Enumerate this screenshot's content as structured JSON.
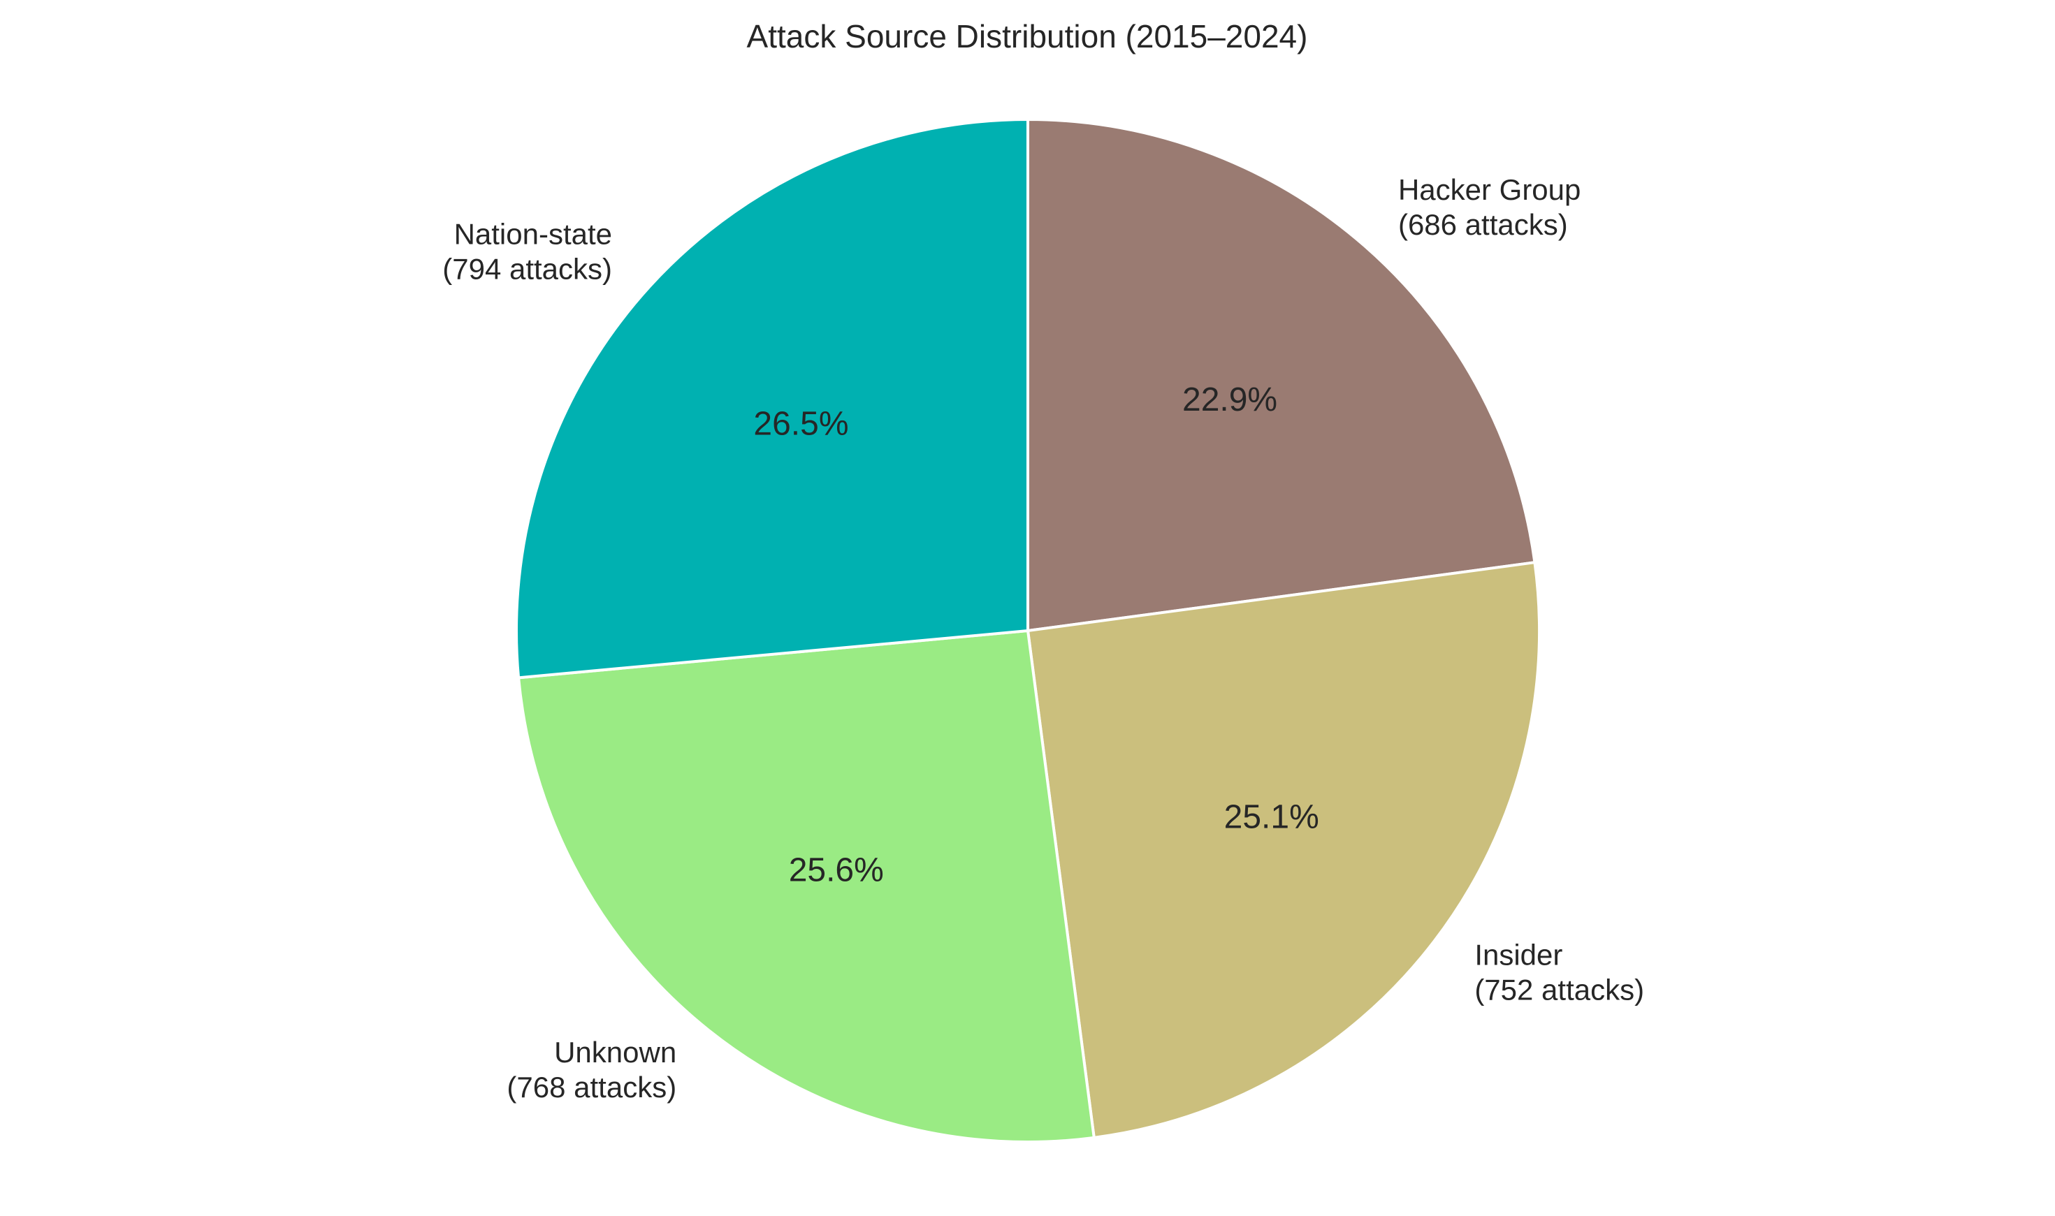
{
  "chart_data": {
    "type": "pie",
    "title": "Attack Source Distribution (2015–2024)",
    "start_angle_deg": 90,
    "direction": "clockwise",
    "slices": [
      {
        "name": "Hacker Group",
        "count_label": "(686 attacks)",
        "value": 686,
        "percent_label": "22.9%",
        "color": "#9a7b72"
      },
      {
        "name": "Insider",
        "count_label": "(752 attacks)",
        "value": 752,
        "percent_label": "25.1%",
        "color": "#cbbf7d"
      },
      {
        "name": "Unknown",
        "count_label": "(768 attacks)",
        "value": 768,
        "percent_label": "25.6%",
        "color": "#9aeb84"
      },
      {
        "name": "Nation-state",
        "count_label": "(794 attacks)",
        "value": 794,
        "percent_label": "26.5%",
        "color": "#00b1b1"
      }
    ]
  }
}
